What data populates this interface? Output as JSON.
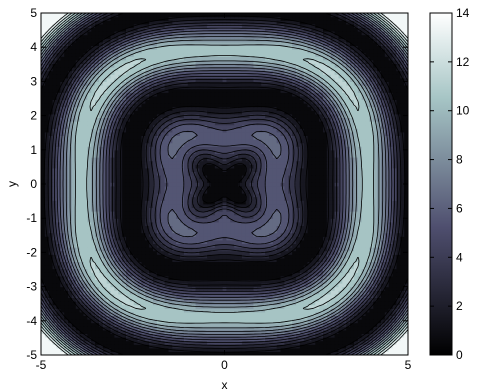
{
  "chart_data": {
    "type": "heatmap",
    "subtype": "filled-contour",
    "title": "",
    "xlabel": "x",
    "ylabel": "y",
    "xlim": [
      -5,
      5
    ],
    "ylim": [
      -5,
      5
    ],
    "xticks": [
      -5,
      0,
      5
    ],
    "yticks": [
      -5,
      -4,
      -3,
      -2,
      -1,
      0,
      1,
      2,
      3,
      4,
      5
    ],
    "xtick_labels": [
      "-5",
      "0",
      "5"
    ],
    "ytick_labels": [
      "-5",
      "-4",
      "-3",
      "-2",
      "-1",
      "0",
      "1",
      "2",
      "3",
      "4",
      "5"
    ],
    "colorbar": {
      "min": 0,
      "max": 14,
      "ticks": [
        0,
        2,
        4,
        6,
        8,
        10,
        12,
        14
      ],
      "tick_labels": [
        "0",
        "2",
        "4",
        "6",
        "8",
        "10",
        "12",
        "14"
      ],
      "colormap": "bone"
    },
    "contour_levels": [
      0,
      1,
      2,
      3,
      4,
      5,
      6,
      7,
      8,
      9,
      10,
      11,
      12,
      13,
      14
    ],
    "grid": false,
    "colors": {
      "contour_line": "#000000",
      "axis": "#000000"
    }
  }
}
